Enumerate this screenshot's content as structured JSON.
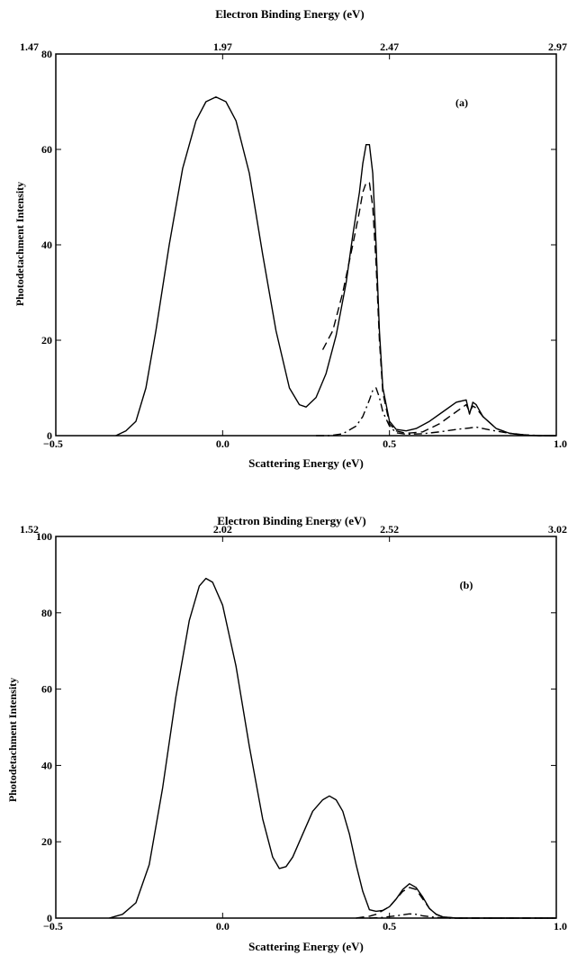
{
  "chart_data": [
    {
      "type": "line",
      "panel_label": "(a)",
      "xlabel": "Scattering Energy (eV)",
      "top_xlabel": "Electron Binding Energy (eV)",
      "ylabel": "Photodetachment Intensity",
      "xlim": [
        -0.5,
        1.0
      ],
      "ylim": [
        0,
        80
      ],
      "x_ticks": [
        "−0.5",
        "0.0",
        "0.5",
        "1.0"
      ],
      "top_ticks": [
        "1.47",
        "1.97",
        "2.47",
        "2.97"
      ],
      "y_ticks": [
        "0",
        "20",
        "40",
        "60",
        "80"
      ],
      "grid": false,
      "series": [
        {
          "style": "solid",
          "x": [
            -0.32,
            -0.29,
            -0.26,
            -0.23,
            -0.2,
            -0.16,
            -0.12,
            -0.08,
            -0.05,
            -0.02,
            0.01,
            0.04,
            0.08,
            0.12,
            0.16,
            0.2,
            0.23,
            0.25,
            0.28,
            0.31,
            0.34,
            0.37,
            0.39,
            0.41,
            0.42,
            0.43,
            0.44,
            0.45,
            0.46,
            0.47,
            0.48,
            0.5,
            0.52,
            0.55,
            0.58,
            0.62,
            0.66,
            0.7,
            0.73,
            0.74,
            0.75,
            0.76,
            0.78,
            0.82,
            0.86,
            0.9,
            0.95,
            1.0
          ],
          "y": [
            0,
            1,
            3,
            10,
            22,
            40,
            56,
            66,
            70,
            71,
            70,
            66,
            55,
            38,
            22,
            10,
            6.5,
            6,
            8,
            13,
            21,
            32,
            42,
            51,
            57,
            61,
            61,
            55,
            40,
            22,
            10,
            3,
            1.3,
            1,
            1.5,
            3,
            5,
            7,
            7.5,
            4.5,
            7,
            6.5,
            4,
            1.5,
            0.5,
            0.1,
            0,
            0
          ]
        },
        {
          "style": "dashed",
          "x": [
            0.3,
            0.33,
            0.36,
            0.39,
            0.41,
            0.42,
            0.43,
            0.44,
            0.45,
            0.46,
            0.47,
            0.48,
            0.5,
            0.52,
            0.55,
            0.6,
            0.65,
            0.7,
            0.73,
            0.74,
            0.75,
            0.76,
            0.78,
            0.82,
            0.86,
            0.9,
            0.95,
            1.0
          ],
          "y": [
            18,
            22,
            30,
            40,
            47,
            51,
            53,
            53,
            48,
            36,
            20,
            9,
            2.5,
            1,
            0.5,
            0.8,
            2.5,
            5,
            6.5,
            5,
            6.2,
            5.8,
            4,
            1.5,
            0.5,
            0.2,
            0,
            0
          ]
        },
        {
          "style": "dash-dot",
          "x": [
            0.28,
            0.32,
            0.36,
            0.4,
            0.42,
            0.44,
            0.45,
            0.46,
            0.47,
            0.48,
            0.5,
            0.52,
            0.55,
            0.6,
            0.65,
            0.7,
            0.74,
            0.76,
            0.8,
            0.85,
            0.9,
            0.95,
            1.0
          ],
          "y": [
            0,
            0,
            0.4,
            2,
            4,
            7.5,
            9.5,
            10,
            8,
            5,
            2,
            0.6,
            0.3,
            0.4,
            0.8,
            1.3,
            1.6,
            1.8,
            1.2,
            0.6,
            0.2,
            0,
            0
          ]
        }
      ]
    },
    {
      "type": "line",
      "panel_label": "(b)",
      "xlabel": "Scattering Energy (eV)",
      "top_xlabel": "Electron Binding Energy (eV)",
      "ylabel": "Photodetachment Intensity",
      "xlim": [
        -0.5,
        1.0
      ],
      "ylim": [
        0,
        100
      ],
      "x_ticks": [
        "−0.5",
        "0.0",
        "0.5",
        "1.0"
      ],
      "top_ticks": [
        "1.52",
        "2.02",
        "2.52",
        "3.02"
      ],
      "y_ticks": [
        "0",
        "20",
        "40",
        "60",
        "80",
        "100"
      ],
      "grid": false,
      "series": [
        {
          "style": "solid",
          "x": [
            -0.34,
            -0.3,
            -0.26,
            -0.22,
            -0.18,
            -0.14,
            -0.1,
            -0.07,
            -0.05,
            -0.03,
            0.0,
            0.04,
            0.08,
            0.12,
            0.15,
            0.17,
            0.19,
            0.21,
            0.24,
            0.27,
            0.3,
            0.32,
            0.34,
            0.36,
            0.38,
            0.4,
            0.42,
            0.44,
            0.46,
            0.48,
            0.5,
            0.52,
            0.54,
            0.56,
            0.58,
            0.6,
            0.62,
            0.64,
            0.66,
            0.7,
            0.75,
            0.8,
            0.9,
            1.0
          ],
          "y": [
            0,
            1,
            4,
            14,
            34,
            58,
            78,
            87,
            89,
            88,
            82,
            66,
            45,
            26,
            16,
            13,
            13.5,
            16,
            22,
            28,
            31,
            32,
            31,
            28,
            22,
            14,
            7,
            2.2,
            1.8,
            2,
            3,
            5,
            7.5,
            9,
            8,
            5.5,
            2.5,
            1,
            0.3,
            0,
            0,
            0,
            0,
            0
          ]
        },
        {
          "style": "dashed",
          "x": [
            0.4,
            0.44,
            0.46,
            0.48,
            0.5,
            0.52,
            0.54,
            0.56,
            0.58,
            0.6,
            0.62,
            0.64,
            0.66,
            0.7,
            0.8,
            1.0
          ],
          "y": [
            0,
            0.5,
            1,
            2,
            3,
            5,
            7,
            8,
            7.5,
            5,
            2.5,
            1,
            0.3,
            0,
            0,
            0
          ]
        },
        {
          "style": "dash-dot",
          "x": [
            0.44,
            0.48,
            0.52,
            0.55,
            0.56,
            0.58,
            0.6,
            0.64,
            0.68,
            0.75,
            1.0
          ],
          "y": [
            0,
            0.2,
            0.6,
            1,
            1.1,
            1,
            0.6,
            0.2,
            0,
            0,
            0
          ]
        }
      ]
    }
  ]
}
